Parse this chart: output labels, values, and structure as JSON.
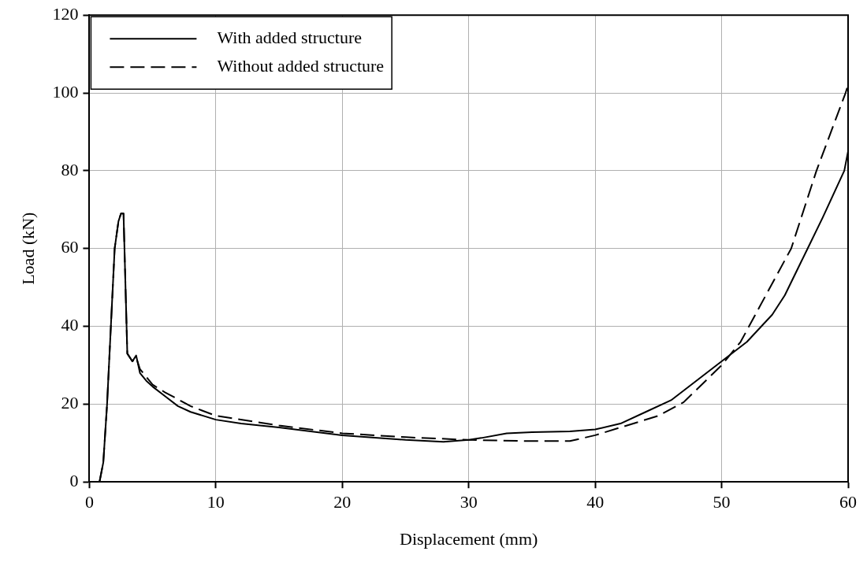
{
  "chart_data": {
    "type": "line",
    "xlabel": "Displacement (mm)",
    "ylabel": "Load (kN)",
    "xlim": [
      0,
      60
    ],
    "xticks": [
      0,
      10,
      20,
      30,
      40,
      50,
      60
    ],
    "ylim": [
      0,
      120
    ],
    "yticks": [
      0,
      20,
      40,
      60,
      80,
      100,
      120
    ],
    "grid": true,
    "legend": "top left",
    "marker": "none",
    "series": [
      {
        "name": "With added structure",
        "color": "#000000",
        "line_style": "solid",
        "x": [
          0.8,
          1.1,
          1.4,
          1.7,
          2.0,
          2.3,
          2.5,
          2.7,
          2.9,
          3.0,
          3.4,
          3.7,
          4.0,
          4.5,
          5,
          6,
          7,
          8,
          10,
          12,
          15,
          20,
          25,
          28,
          30,
          31,
          33,
          35,
          38,
          40,
          42,
          44,
          46,
          48,
          50,
          52,
          54,
          55,
          56.8,
          58,
          59.7,
          60
        ],
        "values": [
          0,
          5,
          20,
          40,
          60,
          67,
          69,
          69,
          45,
          33,
          31,
          32.5,
          28,
          26,
          24.5,
          22,
          19.5,
          18,
          16,
          15,
          14,
          12,
          10.8,
          10.3,
          10.8,
          11.3,
          12.5,
          12.8,
          13,
          13.5,
          15,
          18,
          21,
          26,
          31,
          36,
          43,
          48,
          60,
          68,
          80,
          85
        ]
      },
      {
        "name": "Without added structure",
        "color": "#000000",
        "line_style": "dashed",
        "x": [
          0.8,
          1.1,
          1.4,
          1.7,
          2.0,
          2.3,
          2.5,
          2.7,
          2.9,
          3.0,
          3.4,
          3.7,
          4.0,
          5,
          6,
          8,
          10,
          15,
          20,
          25,
          30,
          35,
          38,
          40,
          42,
          45,
          47,
          50,
          51.5,
          53,
          55.5,
          57.5,
          59.8,
          60
        ],
        "values": [
          0,
          5,
          20,
          40,
          60,
          67,
          69,
          69,
          45,
          33,
          31,
          32,
          29,
          25,
          23,
          19.5,
          17,
          14.5,
          12.5,
          11.5,
          10.8,
          10.5,
          10.5,
          12,
          14,
          17,
          20.5,
          30,
          36,
          45,
          60,
          80,
          100,
          102
        ]
      }
    ]
  }
}
